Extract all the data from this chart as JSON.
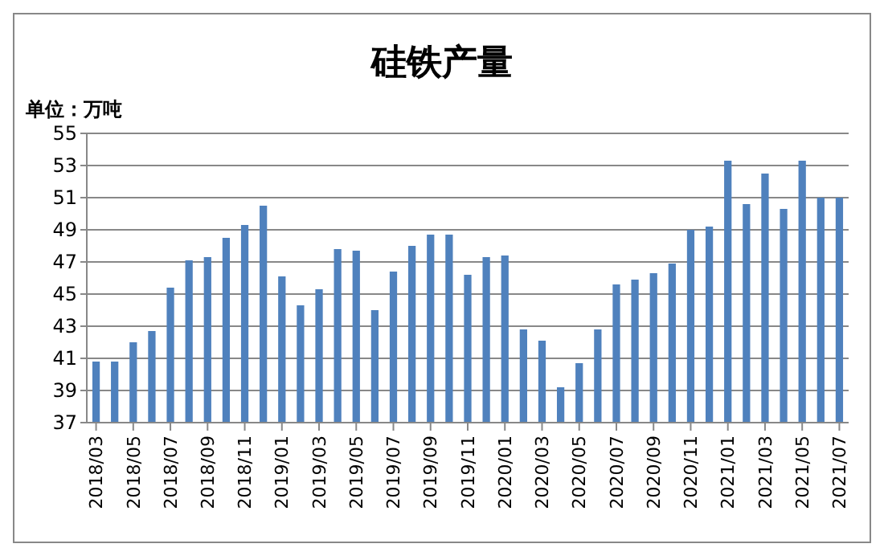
{
  "chart_data": {
    "type": "bar",
    "title": "硅铁产量",
    "annotations": [
      "单位：万吨"
    ],
    "categories": [
      "2018/03",
      null,
      "2018/05",
      null,
      "2018/07",
      null,
      "2018/09",
      null,
      "2018/11",
      null,
      "2019/01",
      null,
      "2019/03",
      null,
      "2019/05",
      null,
      "2019/07",
      null,
      "2019/09",
      null,
      "2019/11",
      null,
      "2020/01",
      null,
      "2020/03",
      null,
      "2020/05",
      null,
      "2020/07",
      null,
      "2020/09",
      null,
      "2020/11",
      null,
      "2021/01",
      null,
      "2021/03",
      null,
      "2021/05",
      null,
      "2021/07"
    ],
    "values": [
      40.8,
      40.8,
      42.0,
      42.7,
      45.4,
      47.1,
      47.3,
      48.5,
      49.3,
      50.5,
      46.1,
      44.3,
      45.3,
      47.8,
      47.7,
      44.0,
      46.4,
      48.0,
      48.7,
      48.7,
      46.2,
      47.3,
      47.4,
      42.8,
      42.1,
      39.2,
      40.7,
      42.8,
      45.6,
      45.9,
      46.3,
      46.9,
      49.0,
      49.2,
      53.3,
      50.6,
      52.5,
      50.3,
      53.3,
      51.0,
      51.0
    ],
    "color": "#4f81bd",
    "ylim": [
      37,
      55
    ],
    "yticks": [
      37,
      39,
      41,
      43,
      45,
      47,
      49,
      51,
      53,
      55
    ],
    "grid": "y"
  }
}
